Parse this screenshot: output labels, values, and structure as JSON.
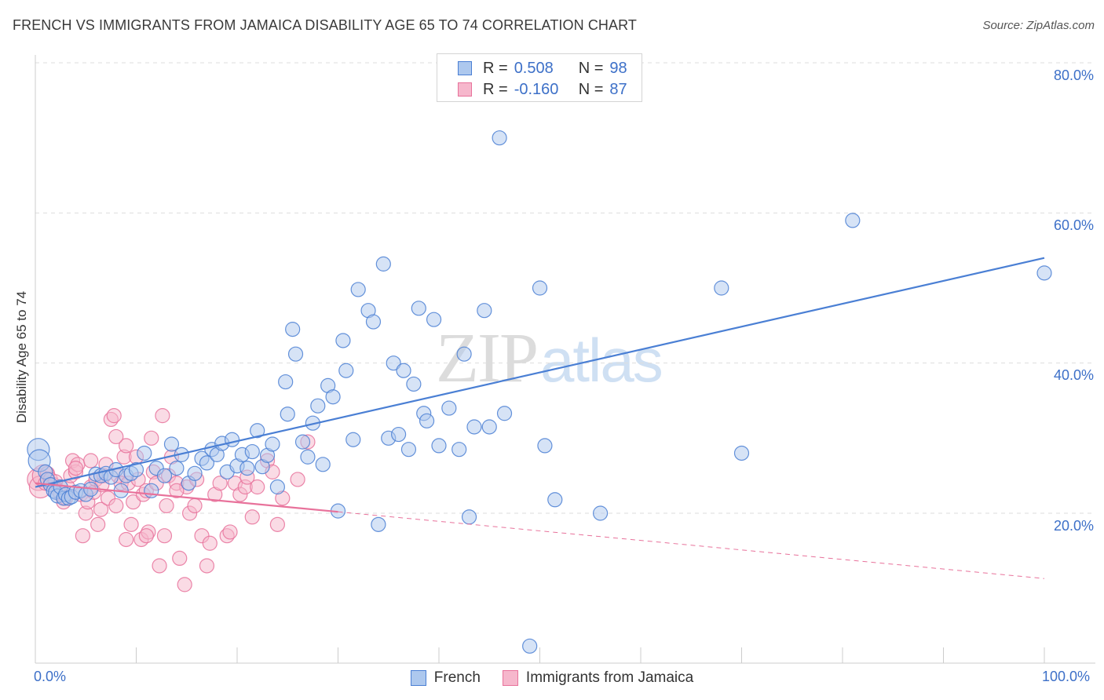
{
  "title": "FRENCH VS IMMIGRANTS FROM JAMAICA DISABILITY AGE 65 TO 74 CORRELATION CHART",
  "source": "Source: ZipAtlas.com",
  "watermark": {
    "zip": "ZIP",
    "atlas": "atlas"
  },
  "colors": {
    "french": "#4a7fd4",
    "french_fill": "#adc8ee",
    "jamaica": "#e8729b",
    "jamaica_fill": "#f6b7cc",
    "tick_text": "#3d70c8",
    "grid": "#dddddd"
  },
  "legend_top": {
    "rows": [
      {
        "r_label": "R =",
        "r_value": "0.508",
        "n_label": "N =",
        "n_value": "98"
      },
      {
        "r_label": "R =",
        "r_value": "-0.160",
        "n_label": "N =",
        "n_value": "87"
      }
    ]
  },
  "legend_bottom": {
    "french": "French",
    "jamaica": "Immigrants from Jamaica"
  },
  "axes": {
    "ylabel": "Disability Age 65 to 74",
    "y_ticks": [
      "80.0%",
      "60.0%",
      "40.0%",
      "20.0%"
    ],
    "x_ticks": [
      "0.0%",
      "100.0%"
    ]
  },
  "chart_data": {
    "type": "scatter",
    "xlabel": "",
    "ylabel": "Disability Age 65 to 74",
    "xlim": [
      0,
      100
    ],
    "ylim": [
      0,
      82
    ],
    "y_gridlines": [
      20,
      40,
      60,
      80
    ],
    "x_tick_count": 11,
    "legend_position": "top-center",
    "series": [
      {
        "name": "French",
        "r": 0.508,
        "n": 98,
        "trend": {
          "x0": 0,
          "y0": 23.5,
          "x1": 100,
          "y1": 54.0,
          "solid_until": 100
        },
        "points": [
          [
            0.3,
            28.5
          ],
          [
            0.4,
            27.0
          ],
          [
            1.0,
            25.5
          ],
          [
            1.2,
            24.5
          ],
          [
            1.5,
            23.8
          ],
          [
            1.8,
            23.0
          ],
          [
            2.0,
            22.8
          ],
          [
            2.2,
            22.3
          ],
          [
            2.5,
            23.5
          ],
          [
            2.8,
            22.0
          ],
          [
            3.0,
            22.5
          ],
          [
            3.3,
            22.0
          ],
          [
            3.6,
            22.2
          ],
          [
            4.0,
            22.8
          ],
          [
            4.5,
            23.0
          ],
          [
            5.0,
            22.5
          ],
          [
            5.5,
            23.2
          ],
          [
            6.0,
            25.2
          ],
          [
            6.5,
            25.0
          ],
          [
            7.0,
            25.3
          ],
          [
            7.5,
            24.8
          ],
          [
            8.0,
            25.8
          ],
          [
            8.5,
            23.0
          ],
          [
            9.0,
            25.0
          ],
          [
            9.5,
            25.3
          ],
          [
            10.0,
            25.8
          ],
          [
            10.8,
            28.0
          ],
          [
            11.5,
            23.0
          ],
          [
            12.0,
            26.0
          ],
          [
            12.8,
            25.0
          ],
          [
            13.5,
            29.2
          ],
          [
            14.0,
            26.0
          ],
          [
            14.5,
            27.8
          ],
          [
            15.2,
            24.0
          ],
          [
            15.8,
            25.3
          ],
          [
            16.5,
            27.3
          ],
          [
            17.0,
            26.7
          ],
          [
            17.5,
            28.5
          ],
          [
            18.0,
            27.8
          ],
          [
            18.5,
            29.3
          ],
          [
            19.0,
            25.5
          ],
          [
            19.5,
            29.8
          ],
          [
            20.0,
            26.3
          ],
          [
            20.5,
            27.8
          ],
          [
            21.0,
            26.0
          ],
          [
            21.5,
            28.2
          ],
          [
            22.0,
            31.0
          ],
          [
            22.5,
            26.2
          ],
          [
            23.0,
            27.7
          ],
          [
            23.5,
            29.2
          ],
          [
            24.0,
            23.5
          ],
          [
            24.8,
            37.5
          ],
          [
            25.0,
            33.2
          ],
          [
            25.5,
            44.5
          ],
          [
            25.8,
            41.2
          ],
          [
            26.5,
            29.5
          ],
          [
            27.0,
            27.5
          ],
          [
            27.5,
            32.0
          ],
          [
            28.0,
            34.3
          ],
          [
            28.5,
            26.5
          ],
          [
            29.0,
            37.0
          ],
          [
            29.5,
            35.5
          ],
          [
            30.0,
            20.3
          ],
          [
            30.5,
            43.0
          ],
          [
            30.8,
            39.0
          ],
          [
            31.5,
            29.8
          ],
          [
            32.0,
            49.8
          ],
          [
            33.0,
            47.0
          ],
          [
            33.5,
            45.5
          ],
          [
            34.0,
            18.5
          ],
          [
            34.5,
            53.2
          ],
          [
            35.0,
            30.0
          ],
          [
            35.5,
            40.0
          ],
          [
            36.0,
            30.5
          ],
          [
            36.5,
            39.0
          ],
          [
            37.0,
            28.5
          ],
          [
            37.5,
            37.2
          ],
          [
            38.0,
            47.3
          ],
          [
            38.5,
            33.3
          ],
          [
            38.8,
            32.3
          ],
          [
            39.5,
            45.8
          ],
          [
            40.0,
            29.0
          ],
          [
            41.0,
            34.0
          ],
          [
            42.0,
            28.5
          ],
          [
            42.5,
            41.2
          ],
          [
            43.0,
            19.5
          ],
          [
            43.5,
            31.5
          ],
          [
            44.5,
            47.0
          ],
          [
            45.0,
            31.5
          ],
          [
            46.0,
            70.0
          ],
          [
            46.5,
            33.3
          ],
          [
            49.0,
            2.3
          ],
          [
            50.0,
            50.0
          ],
          [
            50.5,
            29.0
          ],
          [
            51.5,
            21.8
          ],
          [
            56.0,
            20.0
          ],
          [
            68.0,
            50.0
          ],
          [
            70.0,
            28.0
          ],
          [
            81.0,
            59.0
          ],
          [
            100.0,
            52.0
          ]
        ]
      },
      {
        "name": "Immigrants from Jamaica",
        "r": -0.16,
        "n": 87,
        "trend": {
          "x0": 0,
          "y0": 24.0,
          "x1": 100,
          "y1": 11.3,
          "solid_until": 30
        },
        "points": [
          [
            0.3,
            24.5
          ],
          [
            0.5,
            23.5
          ],
          [
            0.8,
            25.0
          ],
          [
            1.0,
            24.0
          ],
          [
            1.2,
            25.3
          ],
          [
            1.5,
            24.5
          ],
          [
            1.8,
            23.8
          ],
          [
            2.0,
            24.2
          ],
          [
            2.3,
            23.0
          ],
          [
            2.5,
            22.5
          ],
          [
            2.8,
            21.5
          ],
          [
            3.0,
            22.0
          ],
          [
            3.2,
            23.5
          ],
          [
            3.5,
            25.0
          ],
          [
            3.7,
            27.0
          ],
          [
            4.0,
            25.5
          ],
          [
            4.2,
            26.5
          ],
          [
            4.5,
            22.5
          ],
          [
            4.7,
            17.0
          ],
          [
            5.0,
            20.0
          ],
          [
            5.2,
            21.5
          ],
          [
            5.5,
            23.5
          ],
          [
            5.8,
            22.8
          ],
          [
            6.0,
            24.5
          ],
          [
            6.2,
            18.5
          ],
          [
            6.5,
            20.5
          ],
          [
            6.8,
            25.0
          ],
          [
            7.0,
            26.5
          ],
          [
            7.2,
            22.0
          ],
          [
            7.5,
            32.5
          ],
          [
            7.8,
            33.0
          ],
          [
            8.0,
            21.0
          ],
          [
            8.2,
            25.0
          ],
          [
            8.5,
            24.0
          ],
          [
            8.8,
            27.5
          ],
          [
            9.0,
            29.0
          ],
          [
            9.2,
            24.0
          ],
          [
            9.5,
            18.5
          ],
          [
            9.7,
            21.5
          ],
          [
            10.0,
            27.5
          ],
          [
            10.2,
            24.5
          ],
          [
            10.5,
            16.5
          ],
          [
            10.7,
            22.5
          ],
          [
            11.0,
            23.0
          ],
          [
            11.2,
            17.5
          ],
          [
            11.5,
            30.0
          ],
          [
            11.7,
            25.5
          ],
          [
            12.0,
            24.0
          ],
          [
            12.3,
            13.0
          ],
          [
            12.6,
            33.0
          ],
          [
            12.8,
            17.0
          ],
          [
            13.0,
            21.0
          ],
          [
            13.2,
            25.0
          ],
          [
            13.5,
            27.5
          ],
          [
            14.0,
            24.0
          ],
          [
            14.3,
            14.0
          ],
          [
            14.8,
            10.5
          ],
          [
            15.0,
            23.5
          ],
          [
            15.3,
            20.0
          ],
          [
            15.8,
            21.0
          ],
          [
            16.0,
            24.5
          ],
          [
            16.5,
            17.0
          ],
          [
            17.0,
            13.0
          ],
          [
            17.3,
            16.0
          ],
          [
            17.8,
            22.5
          ],
          [
            18.3,
            24.0
          ],
          [
            19.0,
            17.0
          ],
          [
            19.3,
            17.5
          ],
          [
            19.8,
            24.0
          ],
          [
            20.3,
            22.5
          ],
          [
            20.8,
            23.5
          ],
          [
            21.0,
            24.8
          ],
          [
            21.5,
            19.5
          ],
          [
            22.0,
            23.5
          ],
          [
            23.0,
            27.0
          ],
          [
            23.5,
            25.5
          ],
          [
            24.0,
            18.5
          ],
          [
            24.5,
            22.0
          ],
          [
            26.0,
            24.5
          ],
          [
            27.0,
            29.5
          ],
          [
            9.0,
            16.5
          ],
          [
            11.0,
            17.0
          ],
          [
            14.0,
            23.0
          ],
          [
            6.6,
            23.8
          ],
          [
            5.5,
            27.0
          ],
          [
            4.0,
            26.0
          ],
          [
            8.0,
            30.2
          ]
        ]
      }
    ]
  }
}
